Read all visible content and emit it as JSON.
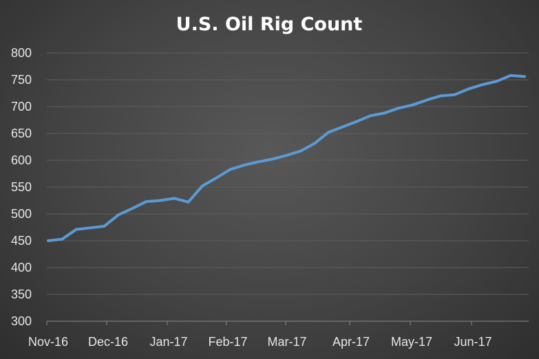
{
  "chart_data": {
    "type": "line",
    "title": "U.S. Oil Rig Count",
    "xlabel": "",
    "ylabel": "",
    "x_tick_labels": [
      "Nov-16",
      "Dec-16",
      "Jan-17",
      "Feb-17",
      "Mar-17",
      "Apr-17",
      "May-17",
      "Jun-17"
    ],
    "ylim": [
      300,
      800
    ],
    "y_ticks": [
      300,
      350,
      400,
      450,
      500,
      550,
      600,
      650,
      700,
      750,
      800
    ],
    "grid": true,
    "legend": "none",
    "series": [
      {
        "color": "#5b9bd5",
        "values": [
          450,
          453,
          471,
          474,
          477,
          498,
          510,
          523,
          525,
          529,
          522,
          552,
          567,
          583,
          591,
          597,
          602,
          609,
          617,
          631,
          652,
          662,
          672,
          683,
          688,
          697,
          703,
          712,
          720,
          722,
          733,
          741,
          747,
          758,
          756
        ]
      }
    ]
  }
}
